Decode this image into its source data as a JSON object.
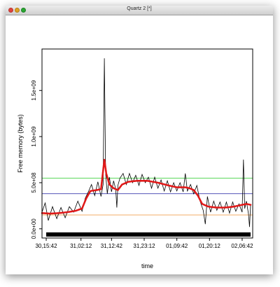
{
  "window": {
    "title": "Quartz 2 [*]"
  },
  "chart_data": {
    "type": "line",
    "title": "",
    "xlabel": "time",
    "ylabel": "Free memory (bytes)",
    "x_tick_labels": [
      "30,15:42",
      "31,02:12",
      "31,12:42",
      "31,23:12",
      "01,09:42",
      "01,20:12",
      "02,06:42"
    ],
    "y_tick_labels": [
      "0.0e+00",
      "5.0e+08",
      "1.0e+09",
      "1.5e+09"
    ],
    "y_tick_values": [
      0,
      500000000,
      1000000000,
      1500000000
    ],
    "ylim": [
      -100000000,
      1950000000
    ],
    "xlim": [
      0,
      100
    ],
    "x_tick_positions": [
      2,
      18.5,
      33,
      48.5,
      64,
      79.5,
      95
    ],
    "grid": false,
    "series": [
      {
        "style": "black thin line",
        "color": "#000000",
        "points": [
          [
            0,
            180000000
          ],
          [
            1.5,
            280000000
          ],
          [
            3,
            90000000
          ],
          [
            5,
            240000000
          ],
          [
            7,
            110000000
          ],
          [
            9,
            230000000
          ],
          [
            11,
            120000000
          ],
          [
            13,
            240000000
          ],
          [
            15,
            180000000
          ],
          [
            17,
            300000000
          ],
          [
            19,
            190000000
          ],
          [
            20.5,
            330000000
          ],
          [
            22,
            400000000
          ],
          [
            23.5,
            480000000
          ],
          [
            25,
            360000000
          ],
          [
            26.5,
            510000000
          ],
          [
            28,
            350000000
          ],
          [
            29,
            480000000
          ],
          [
            29.6,
            1850000000
          ],
          [
            30.2,
            600000000
          ],
          [
            31,
            380000000
          ],
          [
            32,
            560000000
          ],
          [
            33,
            400000000
          ],
          [
            34,
            520000000
          ],
          [
            35,
            430000000
          ],
          [
            35.5,
            230000000
          ],
          [
            36,
            470000000
          ],
          [
            37,
            550000000
          ],
          [
            38.5,
            600000000
          ],
          [
            40,
            480000000
          ],
          [
            41.5,
            600000000
          ],
          [
            43,
            500000000
          ],
          [
            44.5,
            580000000
          ],
          [
            46,
            470000000
          ],
          [
            47.5,
            590000000
          ],
          [
            49,
            500000000
          ],
          [
            50.5,
            560000000
          ],
          [
            52,
            440000000
          ],
          [
            53.5,
            560000000
          ],
          [
            55,
            440000000
          ],
          [
            56.5,
            530000000
          ],
          [
            58,
            410000000
          ],
          [
            59.5,
            520000000
          ],
          [
            61,
            400000000
          ],
          [
            62.5,
            500000000
          ],
          [
            64,
            410000000
          ],
          [
            65.5,
            500000000
          ],
          [
            67,
            400000000
          ],
          [
            68,
            600000000
          ],
          [
            69,
            410000000
          ],
          [
            70.5,
            480000000
          ],
          [
            72,
            380000000
          ],
          [
            73.5,
            470000000
          ],
          [
            75,
            300000000
          ],
          [
            76.5,
            200000000
          ],
          [
            77.5,
            50000000
          ],
          [
            78.5,
            350000000
          ],
          [
            80,
            180000000
          ],
          [
            81.5,
            300000000
          ],
          [
            83,
            200000000
          ],
          [
            84.5,
            290000000
          ],
          [
            86,
            180000000
          ],
          [
            87.5,
            290000000
          ],
          [
            89,
            170000000
          ],
          [
            90.5,
            290000000
          ],
          [
            92,
            190000000
          ],
          [
            93.5,
            270000000
          ],
          [
            95,
            180000000
          ],
          [
            95.6,
            750000000
          ],
          [
            96.2,
            220000000
          ],
          [
            97,
            300000000
          ],
          [
            98,
            160000000
          ],
          [
            98.5,
            20000000
          ],
          [
            99,
            260000000
          ]
        ]
      },
      {
        "style": "red dotted smoothed trend",
        "color": "#e01818",
        "points": [
          [
            0,
            170000000
          ],
          [
            4,
            165000000
          ],
          [
            8,
            170000000
          ],
          [
            12,
            180000000
          ],
          [
            16,
            195000000
          ],
          [
            19,
            220000000
          ],
          [
            21,
            330000000
          ],
          [
            23,
            410000000
          ],
          [
            26,
            420000000
          ],
          [
            28,
            430000000
          ],
          [
            29.6,
            750000000
          ],
          [
            30.5,
            600000000
          ],
          [
            32,
            480000000
          ],
          [
            34,
            440000000
          ],
          [
            36,
            420000000
          ],
          [
            38,
            480000000
          ],
          [
            41,
            510000000
          ],
          [
            45,
            520000000
          ],
          [
            50,
            520000000
          ],
          [
            55,
            500000000
          ],
          [
            60,
            470000000
          ],
          [
            64,
            450000000
          ],
          [
            68,
            450000000
          ],
          [
            70,
            440000000
          ],
          [
            72,
            420000000
          ],
          [
            74,
            360000000
          ],
          [
            76,
            270000000
          ],
          [
            79,
            240000000
          ],
          [
            83,
            230000000
          ],
          [
            87,
            230000000
          ],
          [
            91,
            240000000
          ],
          [
            95,
            260000000
          ],
          [
            97,
            270000000
          ],
          [
            99,
            260000000
          ]
        ]
      }
    ],
    "hlines": [
      {
        "value": 550000000,
        "color": "#22cc22"
      },
      {
        "value": 380000000,
        "color": "#1a1aa0"
      },
      {
        "value": 150000000,
        "color": "#f0a050"
      }
    ]
  }
}
